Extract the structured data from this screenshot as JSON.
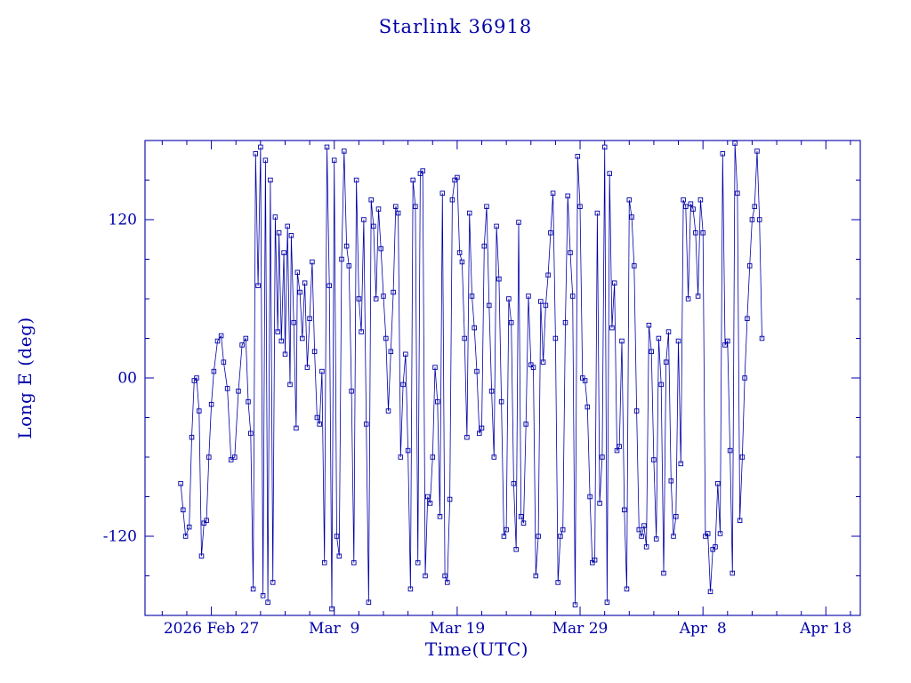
{
  "title": "Starlink 36918",
  "axes": {
    "xlabel": "Time(UTC)",
    "ylabel": "Long E (deg)",
    "x_ticks": [
      {
        "day": 10,
        "label": "2026 Feb 27"
      },
      {
        "day": 20,
        "label": "Mar  9"
      },
      {
        "day": 30,
        "label": "Mar 19"
      },
      {
        "day": 40,
        "label": "Mar 29"
      },
      {
        "day": 50,
        "label": "Apr  8"
      },
      {
        "day": 60,
        "label": "Apr 18"
      }
    ],
    "y_ticks": [
      {
        "value": 120,
        "label": "120"
      },
      {
        "value": 0,
        "label": "00"
      },
      {
        "value": -120,
        "label": "-120"
      }
    ],
    "x_minor_step": 2,
    "y_minor_step": 30
  },
  "chart_data": {
    "type": "line",
    "title": "Starlink 36918",
    "xlabel": "Time(UTC)",
    "ylabel": "Long E (deg)",
    "x_unit": "days, day 0 = 2026 Feb 17 UTC",
    "xlim": [
      4.6,
      62.8
    ],
    "ylim": [
      -180,
      180
    ],
    "grid": false,
    "legend": null,
    "marker": "open-square",
    "color": "#0000a8",
    "series_name": "longitude east of satellite (wraps at +/-180)",
    "points": [
      [
        7.5,
        -80
      ],
      [
        7.7,
        -100
      ],
      [
        7.9,
        -120
      ],
      [
        8.2,
        -113
      ],
      [
        8.4,
        -45
      ],
      [
        8.6,
        -2
      ],
      [
        8.8,
        0
      ],
      [
        9.0,
        -25
      ],
      [
        9.2,
        -135
      ],
      [
        9.4,
        -110
      ],
      [
        9.6,
        -108
      ],
      [
        9.8,
        -60
      ],
      [
        10.0,
        -20
      ],
      [
        10.2,
        5
      ],
      [
        10.5,
        28
      ],
      [
        10.8,
        32
      ],
      [
        11.0,
        12
      ],
      [
        11.3,
        -8
      ],
      [
        11.6,
        -62
      ],
      [
        11.9,
        -60
      ],
      [
        12.2,
        -10
      ],
      [
        12.5,
        25
      ],
      [
        12.8,
        30
      ],
      [
        13.0,
        -18
      ],
      [
        13.2,
        -42
      ],
      [
        13.4,
        -160
      ],
      [
        13.6,
        170
      ],
      [
        13.8,
        70
      ],
      [
        14.0,
        175
      ],
      [
        14.2,
        -165
      ],
      [
        14.4,
        165
      ],
      [
        14.6,
        -170
      ],
      [
        14.8,
        150
      ],
      [
        15.0,
        -155
      ],
      [
        15.2,
        122
      ],
      [
        15.4,
        35
      ],
      [
        15.5,
        110
      ],
      [
        15.7,
        28
      ],
      [
        15.9,
        95
      ],
      [
        16.0,
        18
      ],
      [
        16.2,
        115
      ],
      [
        16.4,
        -5
      ],
      [
        16.5,
        108
      ],
      [
        16.7,
        42
      ],
      [
        16.9,
        -38
      ],
      [
        17.0,
        80
      ],
      [
        17.2,
        65
      ],
      [
        17.4,
        30
      ],
      [
        17.6,
        72
      ],
      [
        17.8,
        8
      ],
      [
        18.0,
        45
      ],
      [
        18.2,
        88
      ],
      [
        18.4,
        20
      ],
      [
        18.6,
        -30
      ],
      [
        18.8,
        -35
      ],
      [
        19.0,
        5
      ],
      [
        19.2,
        -140
      ],
      [
        19.4,
        175
      ],
      [
        19.6,
        70
      ],
      [
        19.8,
        -175
      ],
      [
        20.0,
        165
      ],
      [
        20.2,
        -120
      ],
      [
        20.4,
        -135
      ],
      [
        20.6,
        90
      ],
      [
        20.8,
        172
      ],
      [
        21.0,
        100
      ],
      [
        21.2,
        85
      ],
      [
        21.4,
        -10
      ],
      [
        21.6,
        -140
      ],
      [
        21.8,
        150
      ],
      [
        22.0,
        60
      ],
      [
        22.2,
        35
      ],
      [
        22.4,
        120
      ],
      [
        22.6,
        -35
      ],
      [
        22.8,
        -170
      ],
      [
        23.0,
        135
      ],
      [
        23.2,
        115
      ],
      [
        23.4,
        60
      ],
      [
        23.6,
        128
      ],
      [
        23.8,
        98
      ],
      [
        24.0,
        62
      ],
      [
        24.2,
        30
      ],
      [
        24.4,
        -25
      ],
      [
        24.6,
        20
      ],
      [
        24.8,
        65
      ],
      [
        25.0,
        130
      ],
      [
        25.2,
        125
      ],
      [
        25.4,
        -60
      ],
      [
        25.6,
        -5
      ],
      [
        25.8,
        18
      ],
      [
        26.0,
        -55
      ],
      [
        26.2,
        -160
      ],
      [
        26.4,
        150
      ],
      [
        26.6,
        130
      ],
      [
        26.8,
        -140
      ],
      [
        27.0,
        155
      ],
      [
        27.2,
        157
      ],
      [
        27.4,
        -150
      ],
      [
        27.6,
        -90
      ],
      [
        27.8,
        -95
      ],
      [
        28.0,
        -60
      ],
      [
        28.2,
        8
      ],
      [
        28.4,
        -18
      ],
      [
        28.6,
        -105
      ],
      [
        28.8,
        140
      ],
      [
        29.0,
        -150
      ],
      [
        29.2,
        -155
      ],
      [
        29.4,
        -92
      ],
      [
        29.6,
        135
      ],
      [
        29.8,
        150
      ],
      [
        30.0,
        152
      ],
      [
        30.2,
        95
      ],
      [
        30.4,
        88
      ],
      [
        30.6,
        30
      ],
      [
        30.8,
        -45
      ],
      [
        31.0,
        125
      ],
      [
        31.2,
        62
      ],
      [
        31.4,
        38
      ],
      [
        31.6,
        5
      ],
      [
        31.8,
        -42
      ],
      [
        32.0,
        -38
      ],
      [
        32.2,
        100
      ],
      [
        32.4,
        130
      ],
      [
        32.6,
        55
      ],
      [
        32.8,
        -10
      ],
      [
        33.0,
        -60
      ],
      [
        33.2,
        115
      ],
      [
        33.4,
        75
      ],
      [
        33.6,
        -18
      ],
      [
        33.8,
        -120
      ],
      [
        34.0,
        -115
      ],
      [
        34.2,
        60
      ],
      [
        34.4,
        42
      ],
      [
        34.6,
        -80
      ],
      [
        34.8,
        -130
      ],
      [
        35.0,
        118
      ],
      [
        35.2,
        -105
      ],
      [
        35.4,
        -110
      ],
      [
        35.6,
        -35
      ],
      [
        35.8,
        62
      ],
      [
        36.0,
        10
      ],
      [
        36.2,
        8
      ],
      [
        36.4,
        -150
      ],
      [
        36.6,
        -120
      ],
      [
        36.8,
        58
      ],
      [
        37.0,
        12
      ],
      [
        37.2,
        55
      ],
      [
        37.4,
        78
      ],
      [
        37.6,
        110
      ],
      [
        37.8,
        140
      ],
      [
        38.0,
        30
      ],
      [
        38.2,
        -155
      ],
      [
        38.4,
        -120
      ],
      [
        38.6,
        -115
      ],
      [
        38.8,
        42
      ],
      [
        39.0,
        138
      ],
      [
        39.2,
        95
      ],
      [
        39.4,
        62
      ],
      [
        39.6,
        -172
      ],
      [
        39.8,
        168
      ],
      [
        40.0,
        130
      ],
      [
        40.2,
        0
      ],
      [
        40.4,
        -2
      ],
      [
        40.6,
        -22
      ],
      [
        40.8,
        -90
      ],
      [
        41.0,
        -140
      ],
      [
        41.2,
        -138
      ],
      [
        41.4,
        125
      ],
      [
        41.6,
        -95
      ],
      [
        41.8,
        -60
      ],
      [
        42.0,
        175
      ],
      [
        42.2,
        -170
      ],
      [
        42.4,
        155
      ],
      [
        42.6,
        38
      ],
      [
        42.8,
        72
      ],
      [
        43.0,
        -55
      ],
      [
        43.2,
        -52
      ],
      [
        43.4,
        28
      ],
      [
        43.6,
        -100
      ],
      [
        43.8,
        -160
      ],
      [
        44.0,
        135
      ],
      [
        44.2,
        122
      ],
      [
        44.4,
        85
      ],
      [
        44.6,
        -25
      ],
      [
        44.8,
        -115
      ],
      [
        45.0,
        -120
      ],
      [
        45.2,
        -112
      ],
      [
        45.4,
        -128
      ],
      [
        45.6,
        40
      ],
      [
        45.8,
        20
      ],
      [
        46.0,
        -62
      ],
      [
        46.2,
        -122
      ],
      [
        46.4,
        30
      ],
      [
        46.6,
        -5
      ],
      [
        46.8,
        -148
      ],
      [
        47.0,
        12
      ],
      [
        47.2,
        35
      ],
      [
        47.4,
        -78
      ],
      [
        47.6,
        -120
      ],
      [
        47.8,
        -105
      ],
      [
        48.0,
        28
      ],
      [
        48.2,
        -65
      ],
      [
        48.4,
        135
      ],
      [
        48.6,
        130
      ],
      [
        48.8,
        60
      ],
      [
        49.0,
        132
      ],
      [
        49.2,
        128
      ],
      [
        49.4,
        110
      ],
      [
        49.6,
        62
      ],
      [
        49.8,
        135
      ],
      [
        50.0,
        110
      ],
      [
        50.2,
        -120
      ],
      [
        50.4,
        -118
      ],
      [
        50.6,
        -162
      ],
      [
        50.8,
        -130
      ],
      [
        51.0,
        -128
      ],
      [
        51.2,
        -80
      ],
      [
        51.4,
        -118
      ],
      [
        51.6,
        170
      ],
      [
        51.8,
        25
      ],
      [
        52.0,
        28
      ],
      [
        52.2,
        -55
      ],
      [
        52.4,
        -148
      ],
      [
        52.6,
        178
      ],
      [
        52.8,
        140
      ],
      [
        53.0,
        -108
      ],
      [
        53.2,
        -60
      ],
      [
        53.4,
        0
      ],
      [
        53.6,
        45
      ],
      [
        53.8,
        85
      ],
      [
        54.0,
        120
      ],
      [
        54.2,
        130
      ],
      [
        54.4,
        172
      ],
      [
        54.6,
        120
      ],
      [
        54.8,
        30
      ]
    ]
  }
}
